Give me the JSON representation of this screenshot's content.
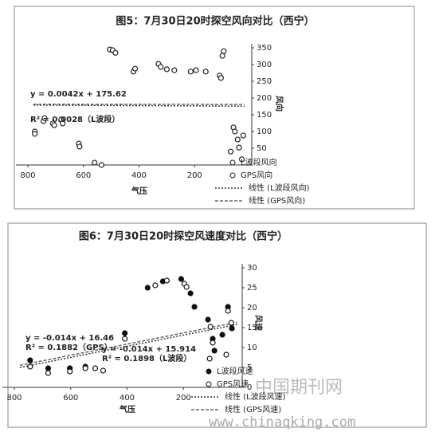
{
  "chart_data": [
    {
      "type": "scatter",
      "title": "图5：7月30日20时探空风向对比（西宁）",
      "x_label": "气压",
      "y_label": "风向",
      "xlim": [
        800,
        0
      ],
      "xticks": [
        800,
        600,
        400,
        200
      ],
      "ylim": [
        0,
        350
      ],
      "yticks": [
        50,
        100,
        150,
        200,
        250,
        300,
        350
      ],
      "series": [
        {
          "name": "L波段风向",
          "color": "#222222",
          "filled": false,
          "x": [
            775,
            744,
            710,
            680,
            617,
            560,
            505,
            420,
            330,
            300,
            214,
            160,
            110,
            100,
            60,
            45,
            30
          ],
          "values": [
            100,
            131,
            124,
            136,
            64,
            7,
            345,
            279,
            302,
            286,
            279,
            279,
            267,
            326,
            112,
            76,
            17
          ]
        },
        {
          "name": "GPS风向",
          "color": "#222222",
          "filled": false,
          "x": [
            775,
            740,
            705,
            675,
            614,
            535,
            495,
            485,
            414,
            322,
            273,
            195,
            105,
            95,
            55,
            40,
            25,
            70
          ],
          "values": [
            93,
            140,
            119,
            124,
            55,
            0,
            343,
            335,
            288,
            293,
            283,
            283,
            260,
            340,
            100,
            52,
            88,
            40
          ]
        }
      ],
      "trendlines": [
        {
          "name": "线性 (L波段风向)",
          "color": "#333333",
          "x": [
            780,
            20
          ],
          "values": [
            178.9,
            175.7
          ]
        },
        {
          "name": "线性 (GPS风向)",
          "color": "#666666",
          "x": [
            780,
            20
          ],
          "values": [
            181.5,
            181
          ]
        }
      ],
      "annotations": [
        "y = 0.0042x + 175.62",
        "R² = 0.0028（L波段）"
      ]
    },
    {
      "type": "scatter",
      "title": "图6：7月30日20时探空风速度对比（西宁）",
      "x_label": "气压",
      "y_label": "风速",
      "xlim": [
        800,
        0
      ],
      "xticks": [
        800,
        600,
        400,
        200
      ],
      "ylim": [
        0,
        30
      ],
      "yticks": [
        0,
        5,
        10,
        15,
        20,
        25,
        30
      ],
      "series": [
        {
          "name": "L波段风速",
          "color": "#111111",
          "filled": true,
          "x": [
            744,
            680,
            603,
            548,
            408,
            327,
            273,
            208,
            175,
            161,
            113,
            96,
            90,
            62,
            42,
            28
          ],
          "values": [
            6.8,
            4.8,
            4.8,
            5.2,
            13.6,
            25,
            26.6,
            27.2,
            23.6,
            20.2,
            17,
            12.2,
            9.2,
            13.2,
            20.2,
            14.8
          ]
        },
        {
          "name": "GPS风速",
          "color": "#111111",
          "filled": false,
          "x": [
            744,
            680,
            603,
            548,
            513,
            485,
            408,
            300,
            259,
            197,
            189,
            104,
            96,
            107,
            48,
            42,
            30
          ],
          "values": [
            5.2,
            3.6,
            4,
            4.8,
            4.8,
            4.2,
            12.2,
            25.6,
            26.8,
            26,
            25.2,
            15.2,
            11.2,
            7.2,
            8.2,
            19.2,
            16.2
          ]
        }
      ],
      "trendlines": [
        {
          "name": "线性 (L波段风速)",
          "color": "#333333",
          "x": [
            780,
            10
          ],
          "values": [
            5,
            15.77
          ]
        },
        {
          "name": "线性 (GPS风速)",
          "color": "#666666",
          "x": [
            780,
            10
          ],
          "values": [
            5.54,
            16.32
          ]
        }
      ],
      "annotations": [
        "y = -0.014x + 16.46",
        "R² = 0.1882（GPS）",
        "y = -0.014x + 15.914",
        "R² = 0.1898（L波段）"
      ]
    }
  ],
  "watermark": {
    "site_name": "中国期刊网",
    "url": "www.chinaqking.com"
  }
}
